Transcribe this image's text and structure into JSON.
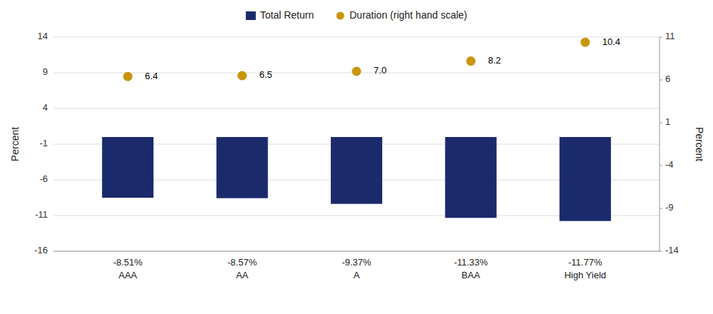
{
  "chart_data": {
    "type": "bar",
    "categories": [
      "AAA",
      "AA",
      "A",
      "BAA",
      "High Yield"
    ],
    "series": [
      {
        "name": "Total Return",
        "color": "#1B2A6B",
        "values": [
          -8.51,
          -8.57,
          -9.37,
          -11.33,
          -11.77
        ],
        "value_labels": [
          "-8.51%",
          "-8.57%",
          "-9.37%",
          "-11.33%",
          "-11.77%"
        ]
      },
      {
        "name": "Duration (right hand scale)",
        "type": "scatter",
        "marker": "circle",
        "axis": "y2",
        "color": "#C8960C",
        "values": [
          6.4,
          6.5,
          7.0,
          8.2,
          10.4
        ],
        "value_labels": [
          "6.4",
          "6.5",
          "7.0",
          "8.2",
          "10.4"
        ]
      }
    ],
    "ylabel": "Percent",
    "y2label": "Percent",
    "ylim": [
      -16,
      14
    ],
    "yticks": [
      -16,
      -11,
      -6,
      -1,
      4,
      9,
      14
    ],
    "y2lim": [
      -14,
      11
    ],
    "y2ticks": [
      -14,
      -9,
      -4,
      1,
      6,
      11
    ],
    "grid": true,
    "data_labels": true,
    "legend": "top"
  }
}
